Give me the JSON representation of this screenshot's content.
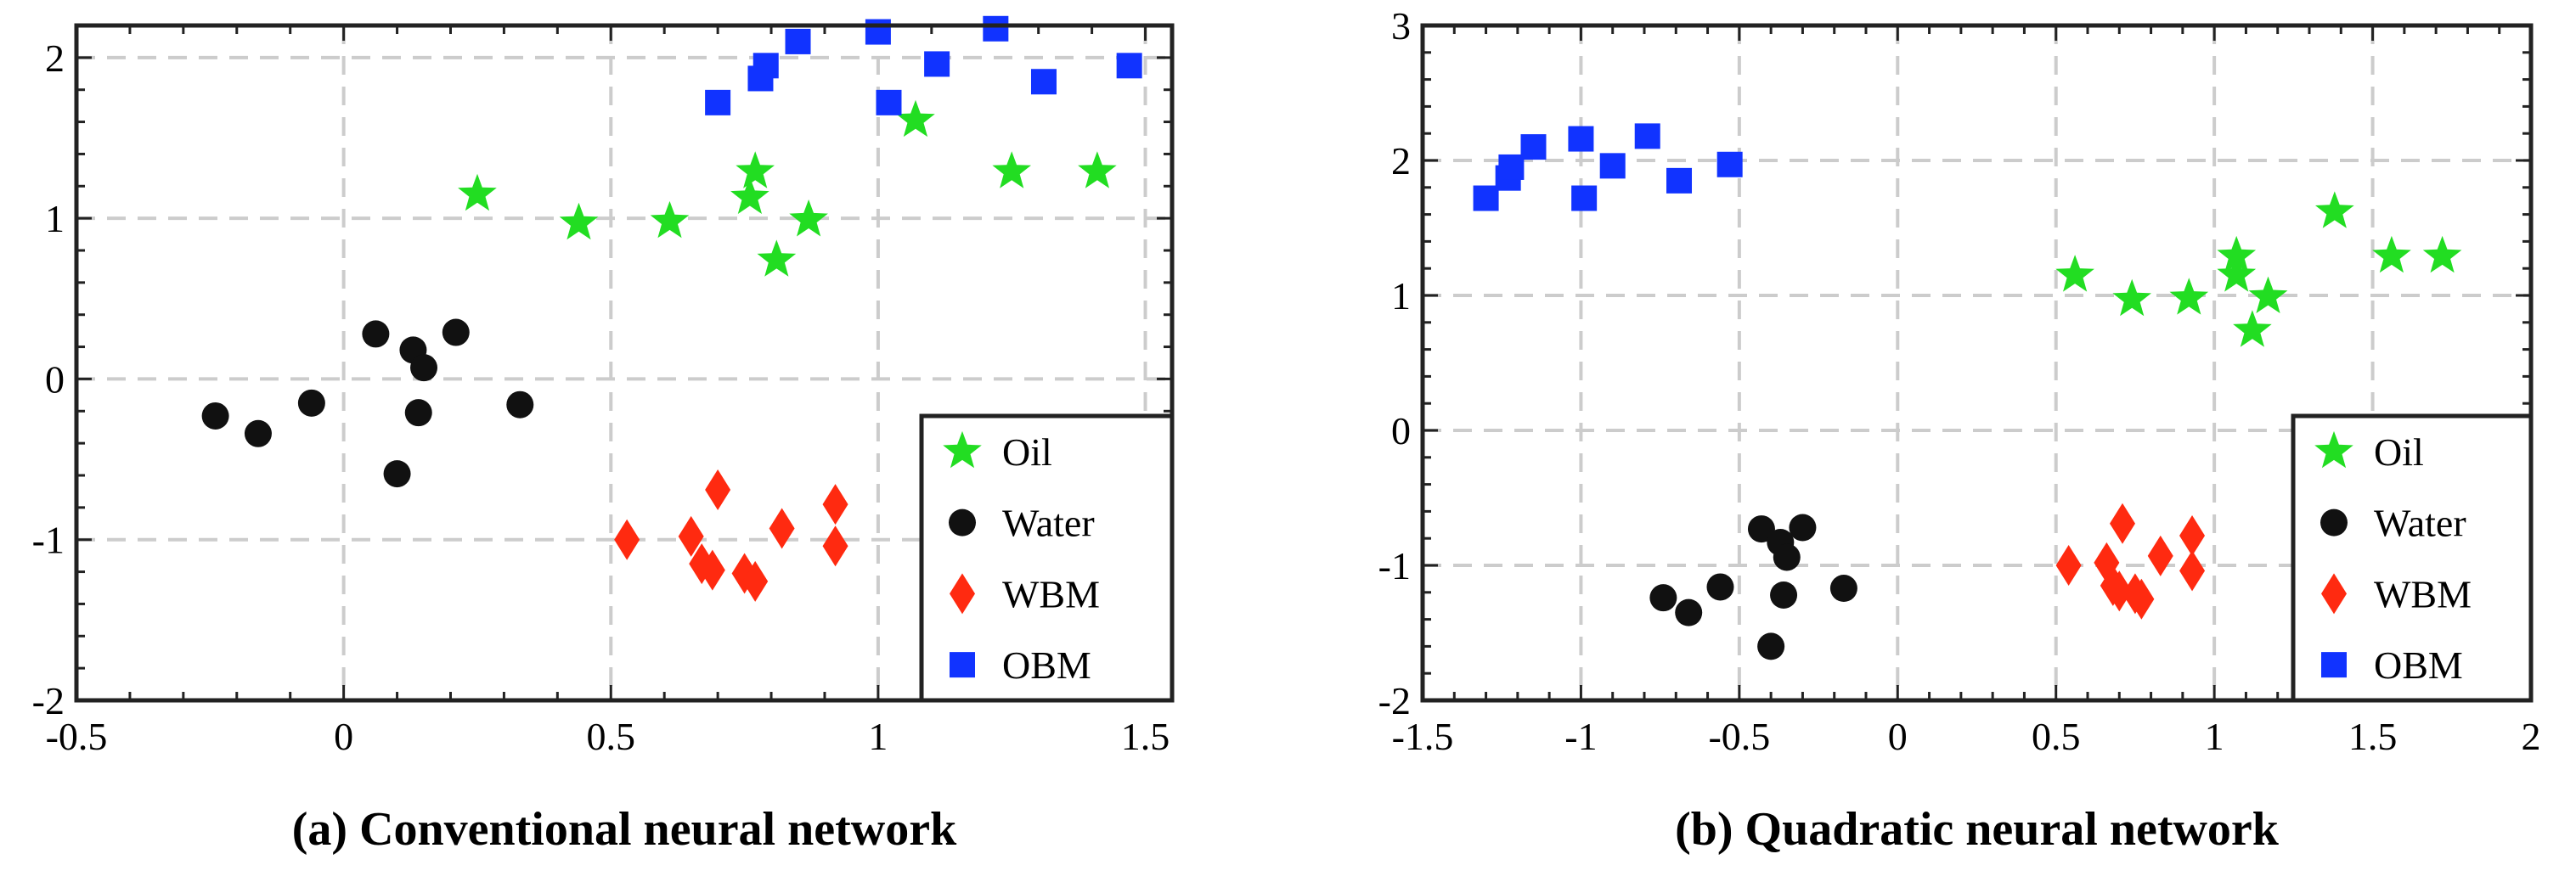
{
  "colors": {
    "oil": "#22dd22",
    "water": "#111111",
    "wbm": "#ff2a10",
    "obm": "#1133ff",
    "grid": "#cccccc",
    "axis": "#222222"
  },
  "chart_data": [
    {
      "type": "scatter",
      "title": "(a) Conventional neural network",
      "xlabel": "",
      "ylabel": "",
      "xlim": [
        -0.5,
        1.55
      ],
      "ylim": [
        -2,
        2.2
      ],
      "xticks": [
        -0.5,
        0,
        0.5,
        1,
        1.5
      ],
      "xtick_labels": [
        "-0.5",
        "0",
        "0.5",
        "1",
        "1.5"
      ],
      "yticks": [
        -2,
        -1,
        0,
        1,
        2
      ],
      "ytick_labels": [
        "-2",
        "-1",
        "0",
        "1",
        "2"
      ],
      "grid": true,
      "legend_position": "bottom-right",
      "series": [
        {
          "name": "Oil",
          "marker": "star",
          "points": [
            [
              0.25,
              1.15
            ],
            [
              0.44,
              0.97
            ],
            [
              0.61,
              0.98
            ],
            [
              0.77,
              1.29
            ],
            [
              0.76,
              1.13
            ],
            [
              0.87,
              0.99
            ],
            [
              0.81,
              0.74
            ],
            [
              1.07,
              1.61
            ],
            [
              1.25,
              1.29
            ],
            [
              1.41,
              1.29
            ]
          ]
        },
        {
          "name": "Water",
          "marker": "circle",
          "points": [
            [
              -0.24,
              -0.23
            ],
            [
              -0.16,
              -0.34
            ],
            [
              -0.06,
              -0.15
            ],
            [
              0.06,
              0.28
            ],
            [
              0.13,
              0.18
            ],
            [
              0.15,
              0.07
            ],
            [
              0.21,
              0.29
            ],
            [
              0.14,
              -0.21
            ],
            [
              0.33,
              -0.16
            ],
            [
              0.1,
              -0.59
            ]
          ]
        },
        {
          "name": "WBM",
          "marker": "diamond",
          "points": [
            [
              0.53,
              -1.0
            ],
            [
              0.65,
              -0.98
            ],
            [
              0.67,
              -1.15
            ],
            [
              0.69,
              -1.19
            ],
            [
              0.7,
              -0.69
            ],
            [
              0.75,
              -1.21
            ],
            [
              0.77,
              -1.26
            ],
            [
              0.82,
              -0.93
            ],
            [
              0.92,
              -0.78
            ],
            [
              0.92,
              -1.04
            ]
          ]
        },
        {
          "name": "OBM",
          "marker": "square",
          "points": [
            [
              0.7,
              1.72
            ],
            [
              0.78,
              1.87
            ],
            [
              0.79,
              1.95
            ],
            [
              0.85,
              2.1
            ],
            [
              1.0,
              2.16
            ],
            [
              1.02,
              1.72
            ],
            [
              1.11,
              1.96
            ],
            [
              1.22,
              2.18
            ],
            [
              1.31,
              1.85
            ],
            [
              1.47,
              1.95
            ]
          ]
        }
      ]
    },
    {
      "type": "scatter",
      "title": "(b) Quadratic neural network",
      "xlabel": "",
      "ylabel": "",
      "xlim": [
        -1.5,
        2.0
      ],
      "ylim": [
        -2,
        3
      ],
      "xticks": [
        -1.5,
        -1,
        -0.5,
        0,
        0.5,
        1,
        1.5,
        2
      ],
      "xtick_labels": [
        "-1.5",
        "-1",
        "-0.5",
        "0",
        "0.5",
        "1",
        "1.5",
        "2"
      ],
      "yticks": [
        -2,
        -1,
        0,
        1,
        2,
        3
      ],
      "ytick_labels": [
        "-2",
        "-1",
        "0",
        "1",
        "2",
        "3"
      ],
      "grid": true,
      "legend_position": "bottom-right",
      "series": [
        {
          "name": "Oil",
          "marker": "star",
          "points": [
            [
              0.56,
              1.15
            ],
            [
              0.74,
              0.97
            ],
            [
              0.92,
              0.98
            ],
            [
              1.07,
              1.29
            ],
            [
              1.07,
              1.15
            ],
            [
              1.17,
              0.99
            ],
            [
              1.12,
              0.74
            ],
            [
              1.38,
              1.62
            ],
            [
              1.56,
              1.29
            ],
            [
              1.72,
              1.29
            ]
          ]
        },
        {
          "name": "Water",
          "marker": "circle",
          "points": [
            [
              -0.74,
              -1.24
            ],
            [
              -0.66,
              -1.35
            ],
            [
              -0.56,
              -1.16
            ],
            [
              -0.43,
              -0.73
            ],
            [
              -0.37,
              -0.83
            ],
            [
              -0.35,
              -0.94
            ],
            [
              -0.3,
              -0.72
            ],
            [
              -0.36,
              -1.22
            ],
            [
              -0.17,
              -1.17
            ],
            [
              -0.4,
              -1.6
            ]
          ]
        },
        {
          "name": "WBM",
          "marker": "diamond",
          "points": [
            [
              0.54,
              -1.0
            ],
            [
              0.66,
              -0.98
            ],
            [
              0.68,
              -1.15
            ],
            [
              0.7,
              -1.19
            ],
            [
              0.71,
              -0.69
            ],
            [
              0.75,
              -1.21
            ],
            [
              0.77,
              -1.25
            ],
            [
              0.83,
              -0.93
            ],
            [
              0.93,
              -0.78
            ],
            [
              0.93,
              -1.04
            ]
          ]
        },
        {
          "name": "OBM",
          "marker": "square",
          "points": [
            [
              -1.3,
              1.72
            ],
            [
              -1.23,
              1.87
            ],
            [
              -1.22,
              1.95
            ],
            [
              -1.15,
              2.1
            ],
            [
              -1.0,
              2.16
            ],
            [
              -0.99,
              1.72
            ],
            [
              -0.9,
              1.96
            ],
            [
              -0.79,
              2.18
            ],
            [
              -0.69,
              1.85
            ],
            [
              -0.53,
              1.97
            ]
          ]
        }
      ]
    }
  ]
}
